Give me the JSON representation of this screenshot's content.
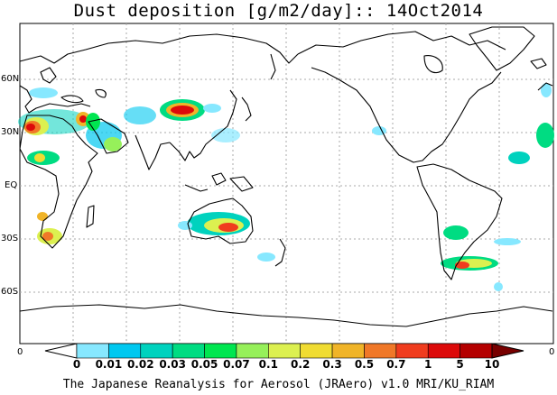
{
  "title": "Dust deposition [g/m2/day]:: 14Oct2014",
  "lat_labels": [
    "60N",
    "30N",
    "EQ",
    "30S",
    "60S"
  ],
  "axis_zero_left": "0",
  "axis_zero_right": "0",
  "colorbar": {
    "labels": [
      "0",
      "0.01",
      "0.02",
      "0.03",
      "0.05",
      "0.07",
      "0.1",
      "0.2",
      "0.3",
      "0.5",
      "0.7",
      "1",
      "5",
      "10"
    ],
    "colors": [
      "#ffffff",
      "#87e8ff",
      "#00c8f0",
      "#00d2be",
      "#00dc82",
      "#00e650",
      "#96f05a",
      "#dcf050",
      "#f0dc32",
      "#f0b428",
      "#f07828",
      "#f03c1e",
      "#dc0a0a",
      "#b40000",
      "#780000"
    ]
  },
  "footer": "The Japanese Reanalysis for Aerosol (JRAero) v1.0 MRI/KU_RIAM"
}
